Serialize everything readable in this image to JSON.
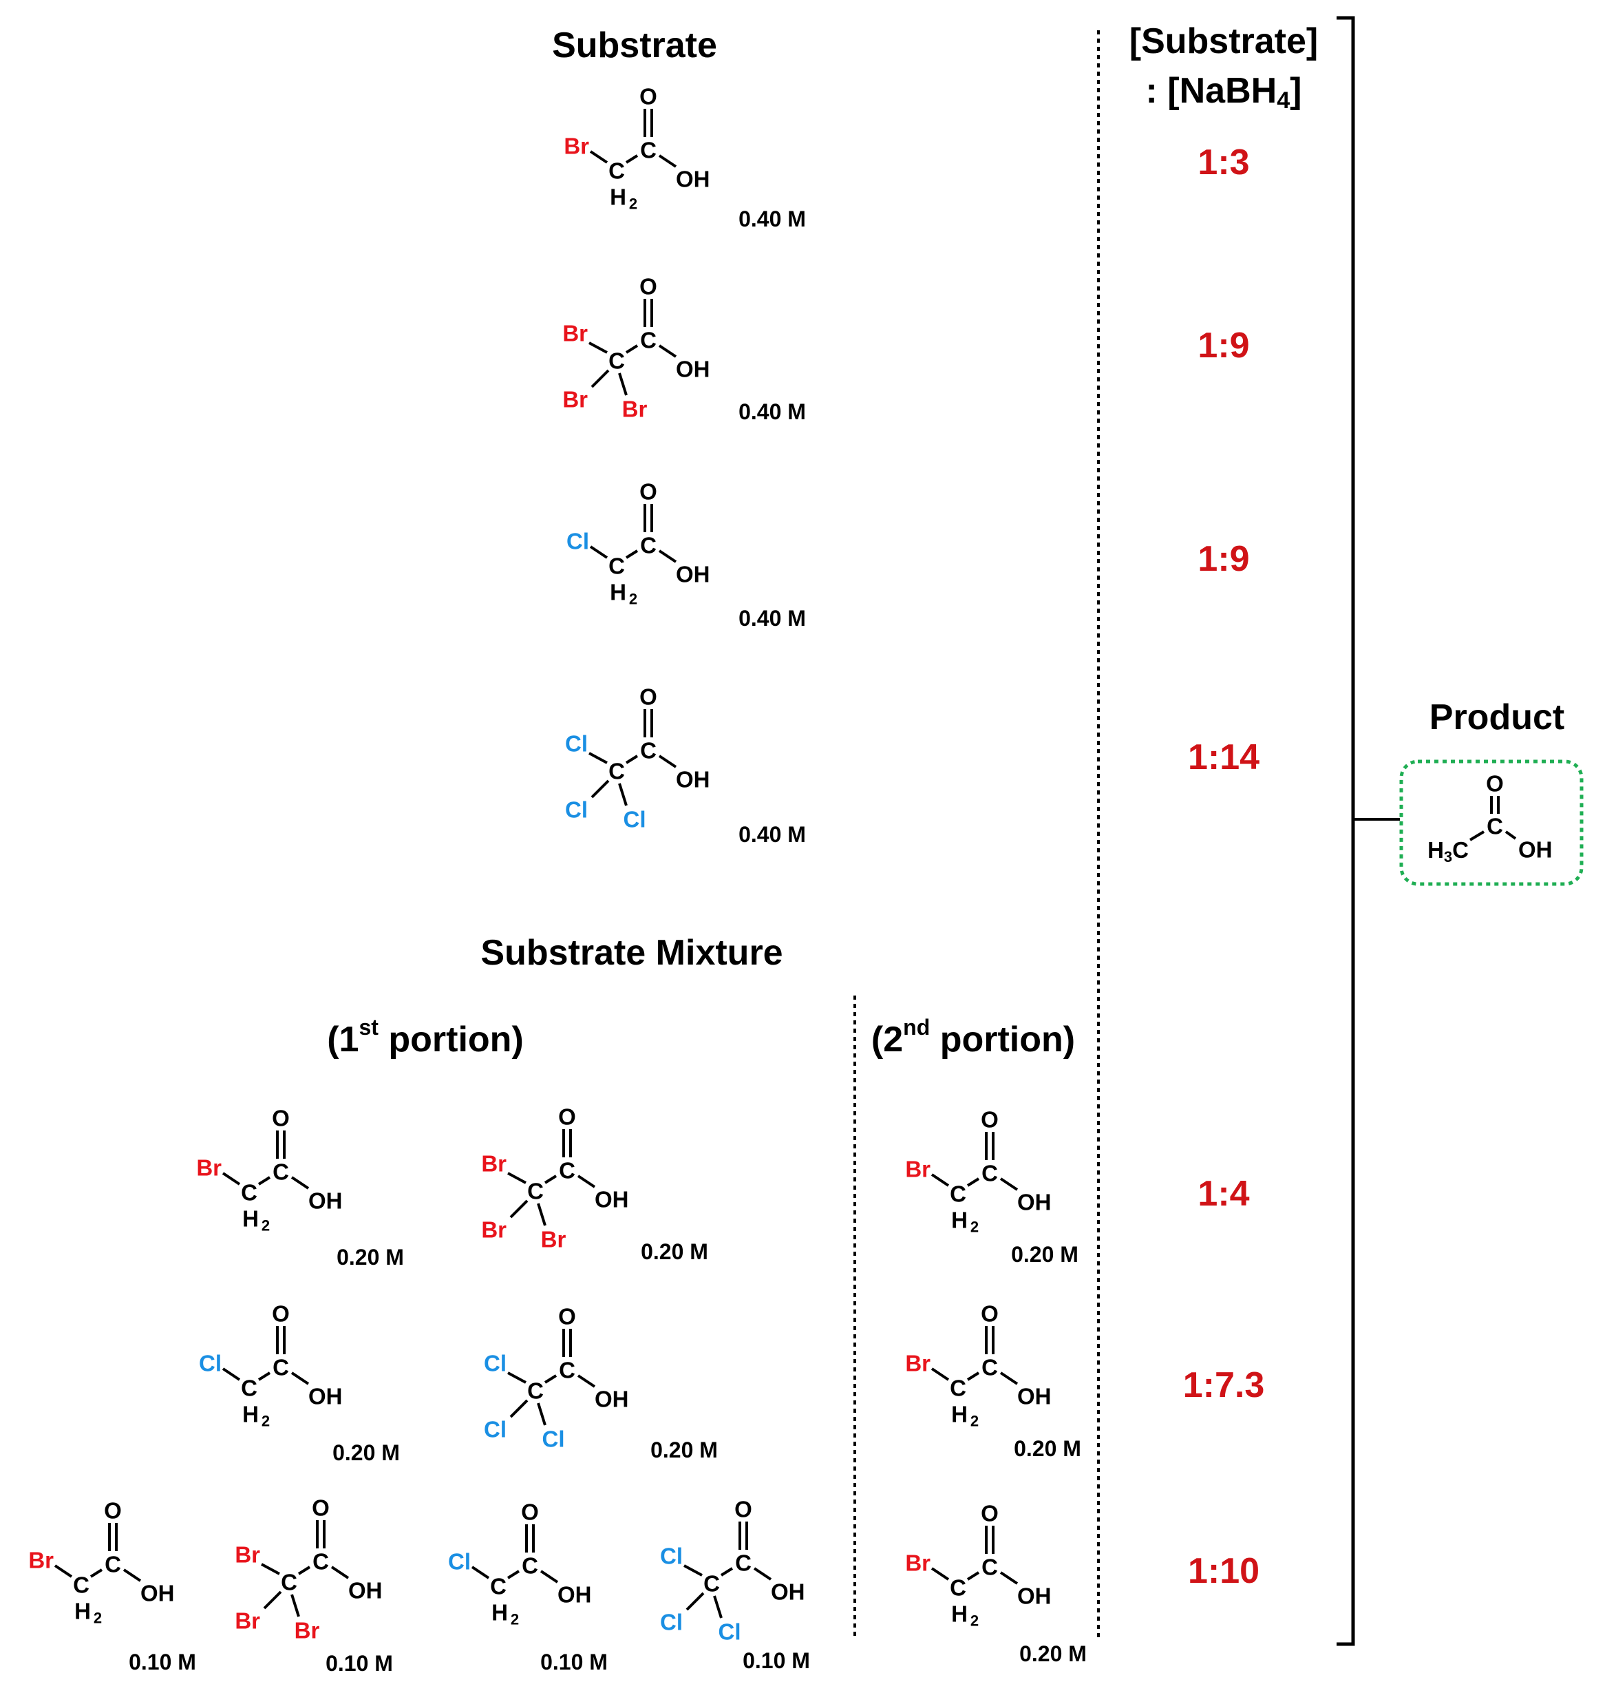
{
  "headers": {
    "substrate": "Substrate",
    "ratio_line1": "[Substrate]",
    "ratio_line2_prefix": ": [NaBH",
    "ratio_line2_sub": "4",
    "ratio_line2_suffix": "]",
    "product": "Product",
    "mixture": "Substrate Mixture",
    "portion1_prefix": "(1",
    "portion1_sup": "st",
    "portion1_suffix": " portion)",
    "portion2_prefix": "(2",
    "portion2_sup": "nd",
    "portion2_suffix": " portion)"
  },
  "colors": {
    "bromine": "#e8141c",
    "chlorine": "#1a8fe3",
    "ratio": "#d01317",
    "text": "#000000",
    "divider": "#a8a8a8",
    "product_box": "#1fae53"
  },
  "atoms": {
    "br": "Br",
    "cl": "Cl",
    "c": "C",
    "o": "O",
    "oh": "OH",
    "h": "H",
    "h_sub": "2",
    "h3_sub": "3"
  },
  "substrates": [
    {
      "type": "mono",
      "halogen": "br",
      "concentration": "0.40 M",
      "ratio": "1:3"
    },
    {
      "type": "tri",
      "halogen": "br",
      "concentration": "0.40 M",
      "ratio": "1:9"
    },
    {
      "type": "mono",
      "halogen": "cl",
      "concentration": "0.40 M",
      "ratio": "1:9"
    },
    {
      "type": "tri",
      "halogen": "cl",
      "concentration": "0.40 M",
      "ratio": "1:14"
    }
  ],
  "mixture_rows": [
    {
      "first_portion": [
        {
          "type": "mono",
          "halogen": "br",
          "concentration": "0.20 M"
        },
        {
          "type": "tri",
          "halogen": "br",
          "concentration": "0.20 M"
        }
      ],
      "second_portion": {
        "type": "mono",
        "halogen": "br",
        "concentration": "0.20 M"
      },
      "ratio": "1:4"
    },
    {
      "first_portion": [
        {
          "type": "mono",
          "halogen": "cl",
          "concentration": "0.20 M"
        },
        {
          "type": "tri",
          "halogen": "cl",
          "concentration": "0.20 M"
        }
      ],
      "second_portion": {
        "type": "mono",
        "halogen": "br",
        "concentration": "0.20 M"
      },
      "ratio": "1:7.3"
    },
    {
      "first_portion": [
        {
          "type": "mono",
          "halogen": "br",
          "concentration": "0.10 M"
        },
        {
          "type": "tri",
          "halogen": "br",
          "concentration": "0.10 M"
        },
        {
          "type": "mono",
          "halogen": "cl",
          "concentration": "0.10 M"
        },
        {
          "type": "tri",
          "halogen": "cl",
          "concentration": "0.10 M"
        }
      ],
      "second_portion": {
        "type": "mono",
        "halogen": "br",
        "concentration": "0.20 M"
      },
      "ratio": "1:10"
    }
  ],
  "product": {
    "type": "acetic"
  }
}
